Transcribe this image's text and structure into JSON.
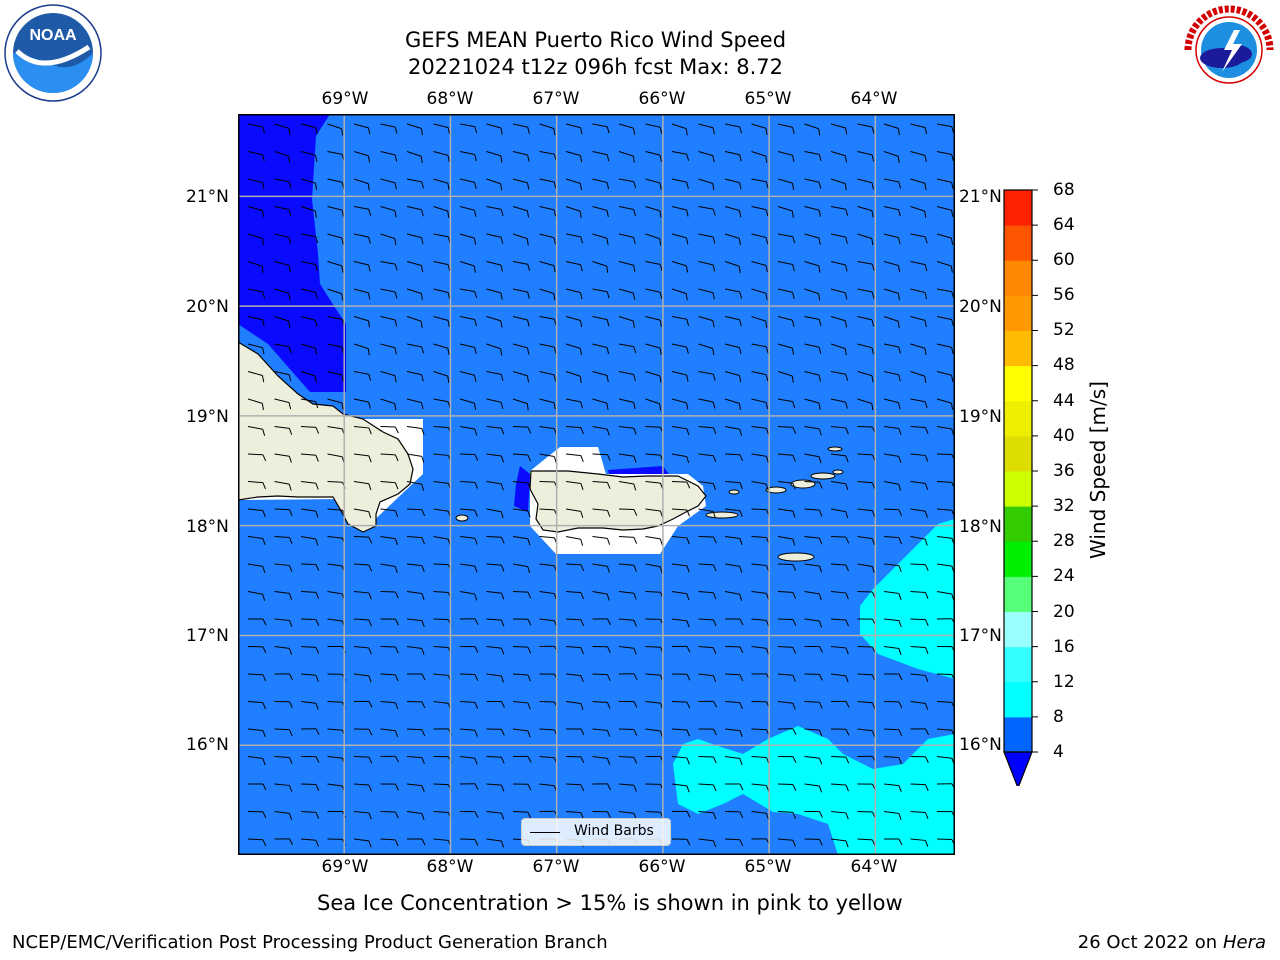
{
  "title": {
    "line1": "GEFS MEAN Puerto Rico Wind Speed",
    "line2": "20221024 t12z 096h fcst   Max: 8.72"
  },
  "axes": {
    "lon_ticks": [
      "69°W",
      "68°W",
      "67°W",
      "66°W",
      "65°W",
      "64°W"
    ],
    "lat_ticks": [
      "21°N",
      "20°N",
      "19°N",
      "18°N",
      "17°N",
      "16°N"
    ],
    "lon_range": [
      -70.0,
      -63.25
    ],
    "lat_range": [
      15.0,
      21.75
    ],
    "grid": true
  },
  "colorbar": {
    "label": "Wind Speed [m/s]",
    "ticks": [
      "68",
      "64",
      "60",
      "56",
      "52",
      "48",
      "44",
      "40",
      "36",
      "32",
      "28",
      "24",
      "20",
      "16",
      "12",
      "8",
      "4"
    ],
    "levels": [
      4,
      8,
      12,
      16,
      20,
      24,
      28,
      32,
      36,
      40,
      44,
      48,
      52,
      56,
      60,
      64,
      68
    ],
    "colors": [
      "#0066ff",
      "#00ffff",
      "#33ffff",
      "#99ffff",
      "#55ff77",
      "#00ee00",
      "#33cc00",
      "#ccff00",
      "#dddd00",
      "#eeee00",
      "#ffff00",
      "#ffbb00",
      "#ff9900",
      "#ff8800",
      "#ff5500",
      "#ff2200"
    ],
    "under_color": "#0000ff",
    "extend": "min"
  },
  "map": {
    "ocean_color": "#1f7fff",
    "low_wind_color": "#0a0aff",
    "high_wind_color": "#00ffff",
    "land_color": "#eeeedd",
    "barb_color": "#000000"
  },
  "legend": {
    "label": "Wind Barbs"
  },
  "note": "Sea Ice Concentration > 15% is shown in pink to yellow",
  "footer": {
    "left": "NCEP/EMC/Verification Post Processing Product Generation Branch",
    "right_date": "26 Oct 2022 on ",
    "right_host": "Hera"
  },
  "logos": {
    "noaa": {
      "text": "NOAA",
      "ring_text": "NATIONAL OCEANIC AND ATMOSPHERIC ADMINISTRATION · U.S. DEPARTMENT OF COMMERCE"
    },
    "nws": {
      "text": "NATIONAL WEATHER SERVICE"
    }
  }
}
